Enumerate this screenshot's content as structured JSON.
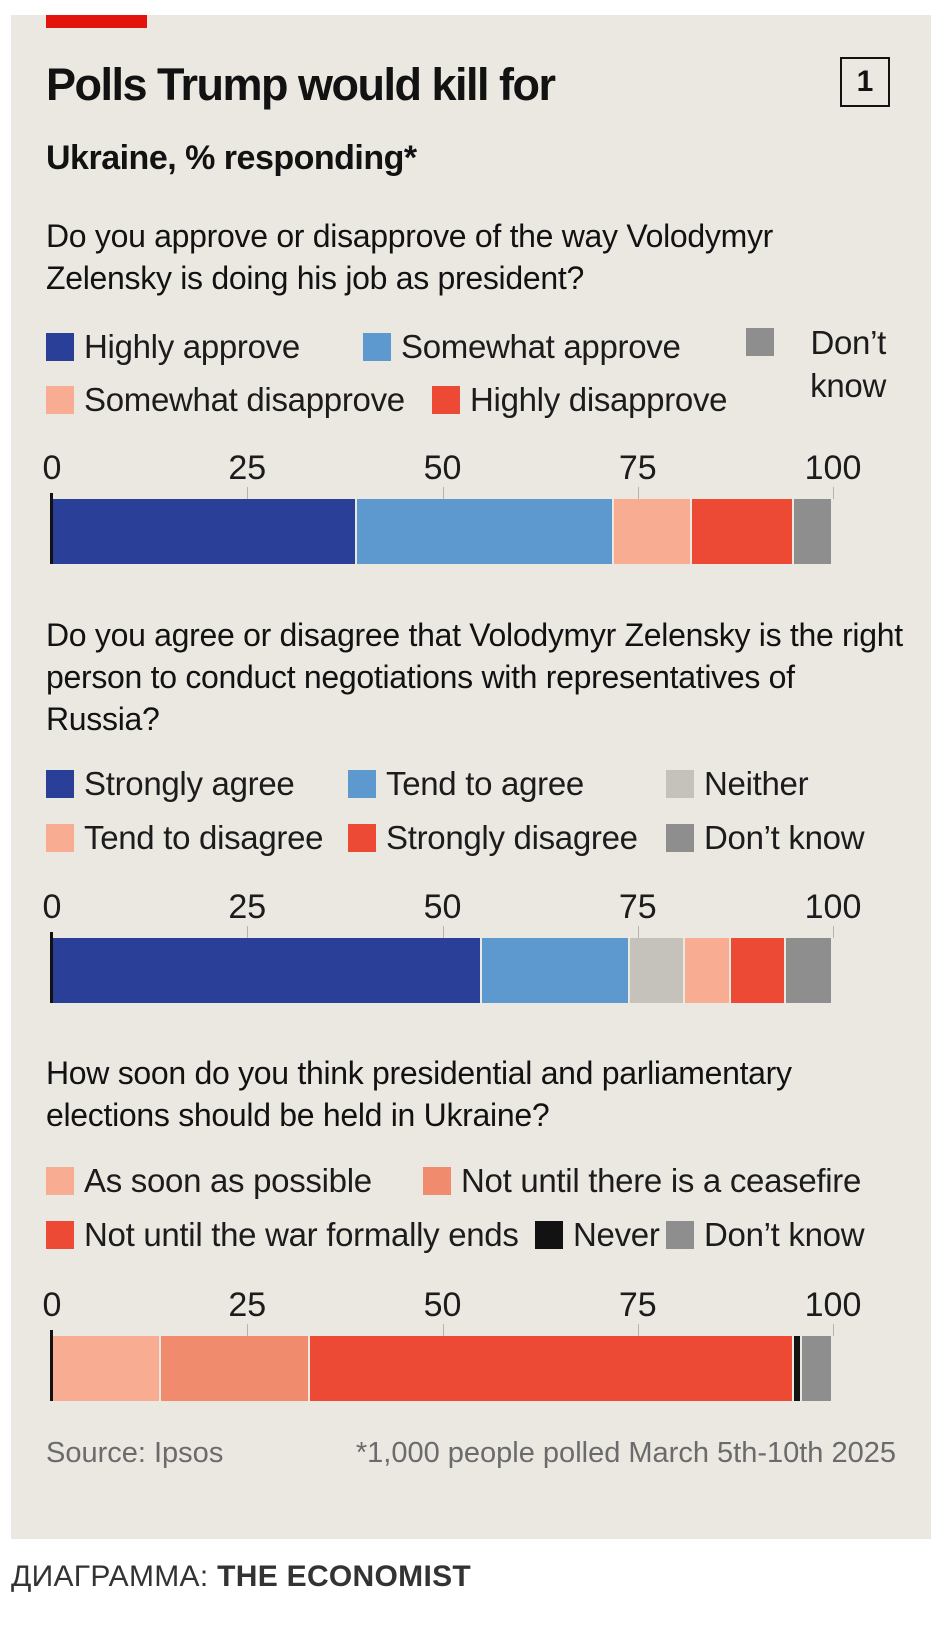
{
  "title": "Polls Trump would kill for",
  "chart_number": "1",
  "subtitle": "Ukraine, % responding*",
  "source": "Source: Ipsos",
  "footnote": "*1,000 people polled March 5th-10th 2025",
  "credit": {
    "prefix": "ДИАГРАММА: ",
    "name": "THE ECONOMIST"
  },
  "colors": {
    "dark_blue": "#2a3f97",
    "light_blue": "#5d98cf",
    "light_grey": "#c5c2bb",
    "peach": "#f8ad92",
    "salmon": "#f08b6d",
    "red": "#ec4a35",
    "black": "#121212",
    "grey": "#8e8e8e",
    "accent_red": "#e3120b"
  },
  "chart_data": [
    {
      "type": "bar",
      "stacked": true,
      "orientation": "horizontal",
      "question": "Do you approve or disapprove of the way Volodymyr Zelensky is doing his job as president?",
      "xlim": [
        0,
        100
      ],
      "ticks": [
        "0",
        "25",
        "50",
        "75",
        "100"
      ],
      "series": [
        {
          "name": "Highly approve",
          "value": 39,
          "color": "#2a3f97"
        },
        {
          "name": "Somewhat approve",
          "value": 33,
          "color": "#5d98cf"
        },
        {
          "name": "Somewhat disapprove",
          "value": 10,
          "color": "#f8ad92"
        },
        {
          "name": "Highly disapprove",
          "value": 13,
          "color": "#ec4a35"
        },
        {
          "name": "Don't know",
          "value": 5,
          "color": "#8e8e8e"
        }
      ],
      "legend_labels": [
        "Highly approve",
        "Somewhat approve",
        "Somewhat disapprove",
        "Highly disapprove"
      ],
      "dk_lines": [
        "Don’t",
        "know"
      ]
    },
    {
      "type": "bar",
      "stacked": true,
      "orientation": "horizontal",
      "question": "Do you agree or disagree that Volodymyr Zelensky is the right person to conduct negotiations with representatives of Russia?",
      "xlim": [
        0,
        100
      ],
      "ticks": [
        "0",
        "25",
        "50",
        "75",
        "100"
      ],
      "series": [
        {
          "name": "Strongly agree",
          "value": 55,
          "color": "#2a3f97"
        },
        {
          "name": "Tend to agree",
          "value": 19,
          "color": "#5d98cf"
        },
        {
          "name": "Neither",
          "value": 7,
          "color": "#c5c2bb"
        },
        {
          "name": "Tend to disagree",
          "value": 6,
          "color": "#f8ad92"
        },
        {
          "name": "Strongly disagree",
          "value": 7,
          "color": "#ec4a35"
        },
        {
          "name": "Don't know",
          "value": 6,
          "color": "#8e8e8e"
        }
      ],
      "legend_labels": [
        "Strongly agree",
        "Tend to agree",
        "Neither",
        "Tend to disagree",
        "Strongly disagree",
        "Don’t know"
      ]
    },
    {
      "type": "bar",
      "stacked": true,
      "orientation": "horizontal",
      "question": "How soon do you think presidential and parliamentary elections should be held in Ukraine?",
      "xlim": [
        0,
        100
      ],
      "ticks": [
        "0",
        "25",
        "50",
        "75",
        "100"
      ],
      "series": [
        {
          "name": "As soon as possible",
          "value": 14,
          "color": "#f8ad92"
        },
        {
          "name": "Not until there is a ceasefire",
          "value": 19,
          "color": "#f08b6d"
        },
        {
          "name": "Not until the war formally ends",
          "value": 62,
          "color": "#ec4a35"
        },
        {
          "name": "Never",
          "value": 1,
          "color": "#121212"
        },
        {
          "name": "Don't know",
          "value": 4,
          "color": "#8e8e8e"
        }
      ],
      "legend_labels": [
        "As soon as possible",
        "Not until there is a ceasefire",
        "Not until the war formally ends",
        "Never",
        "Don’t know"
      ]
    }
  ]
}
